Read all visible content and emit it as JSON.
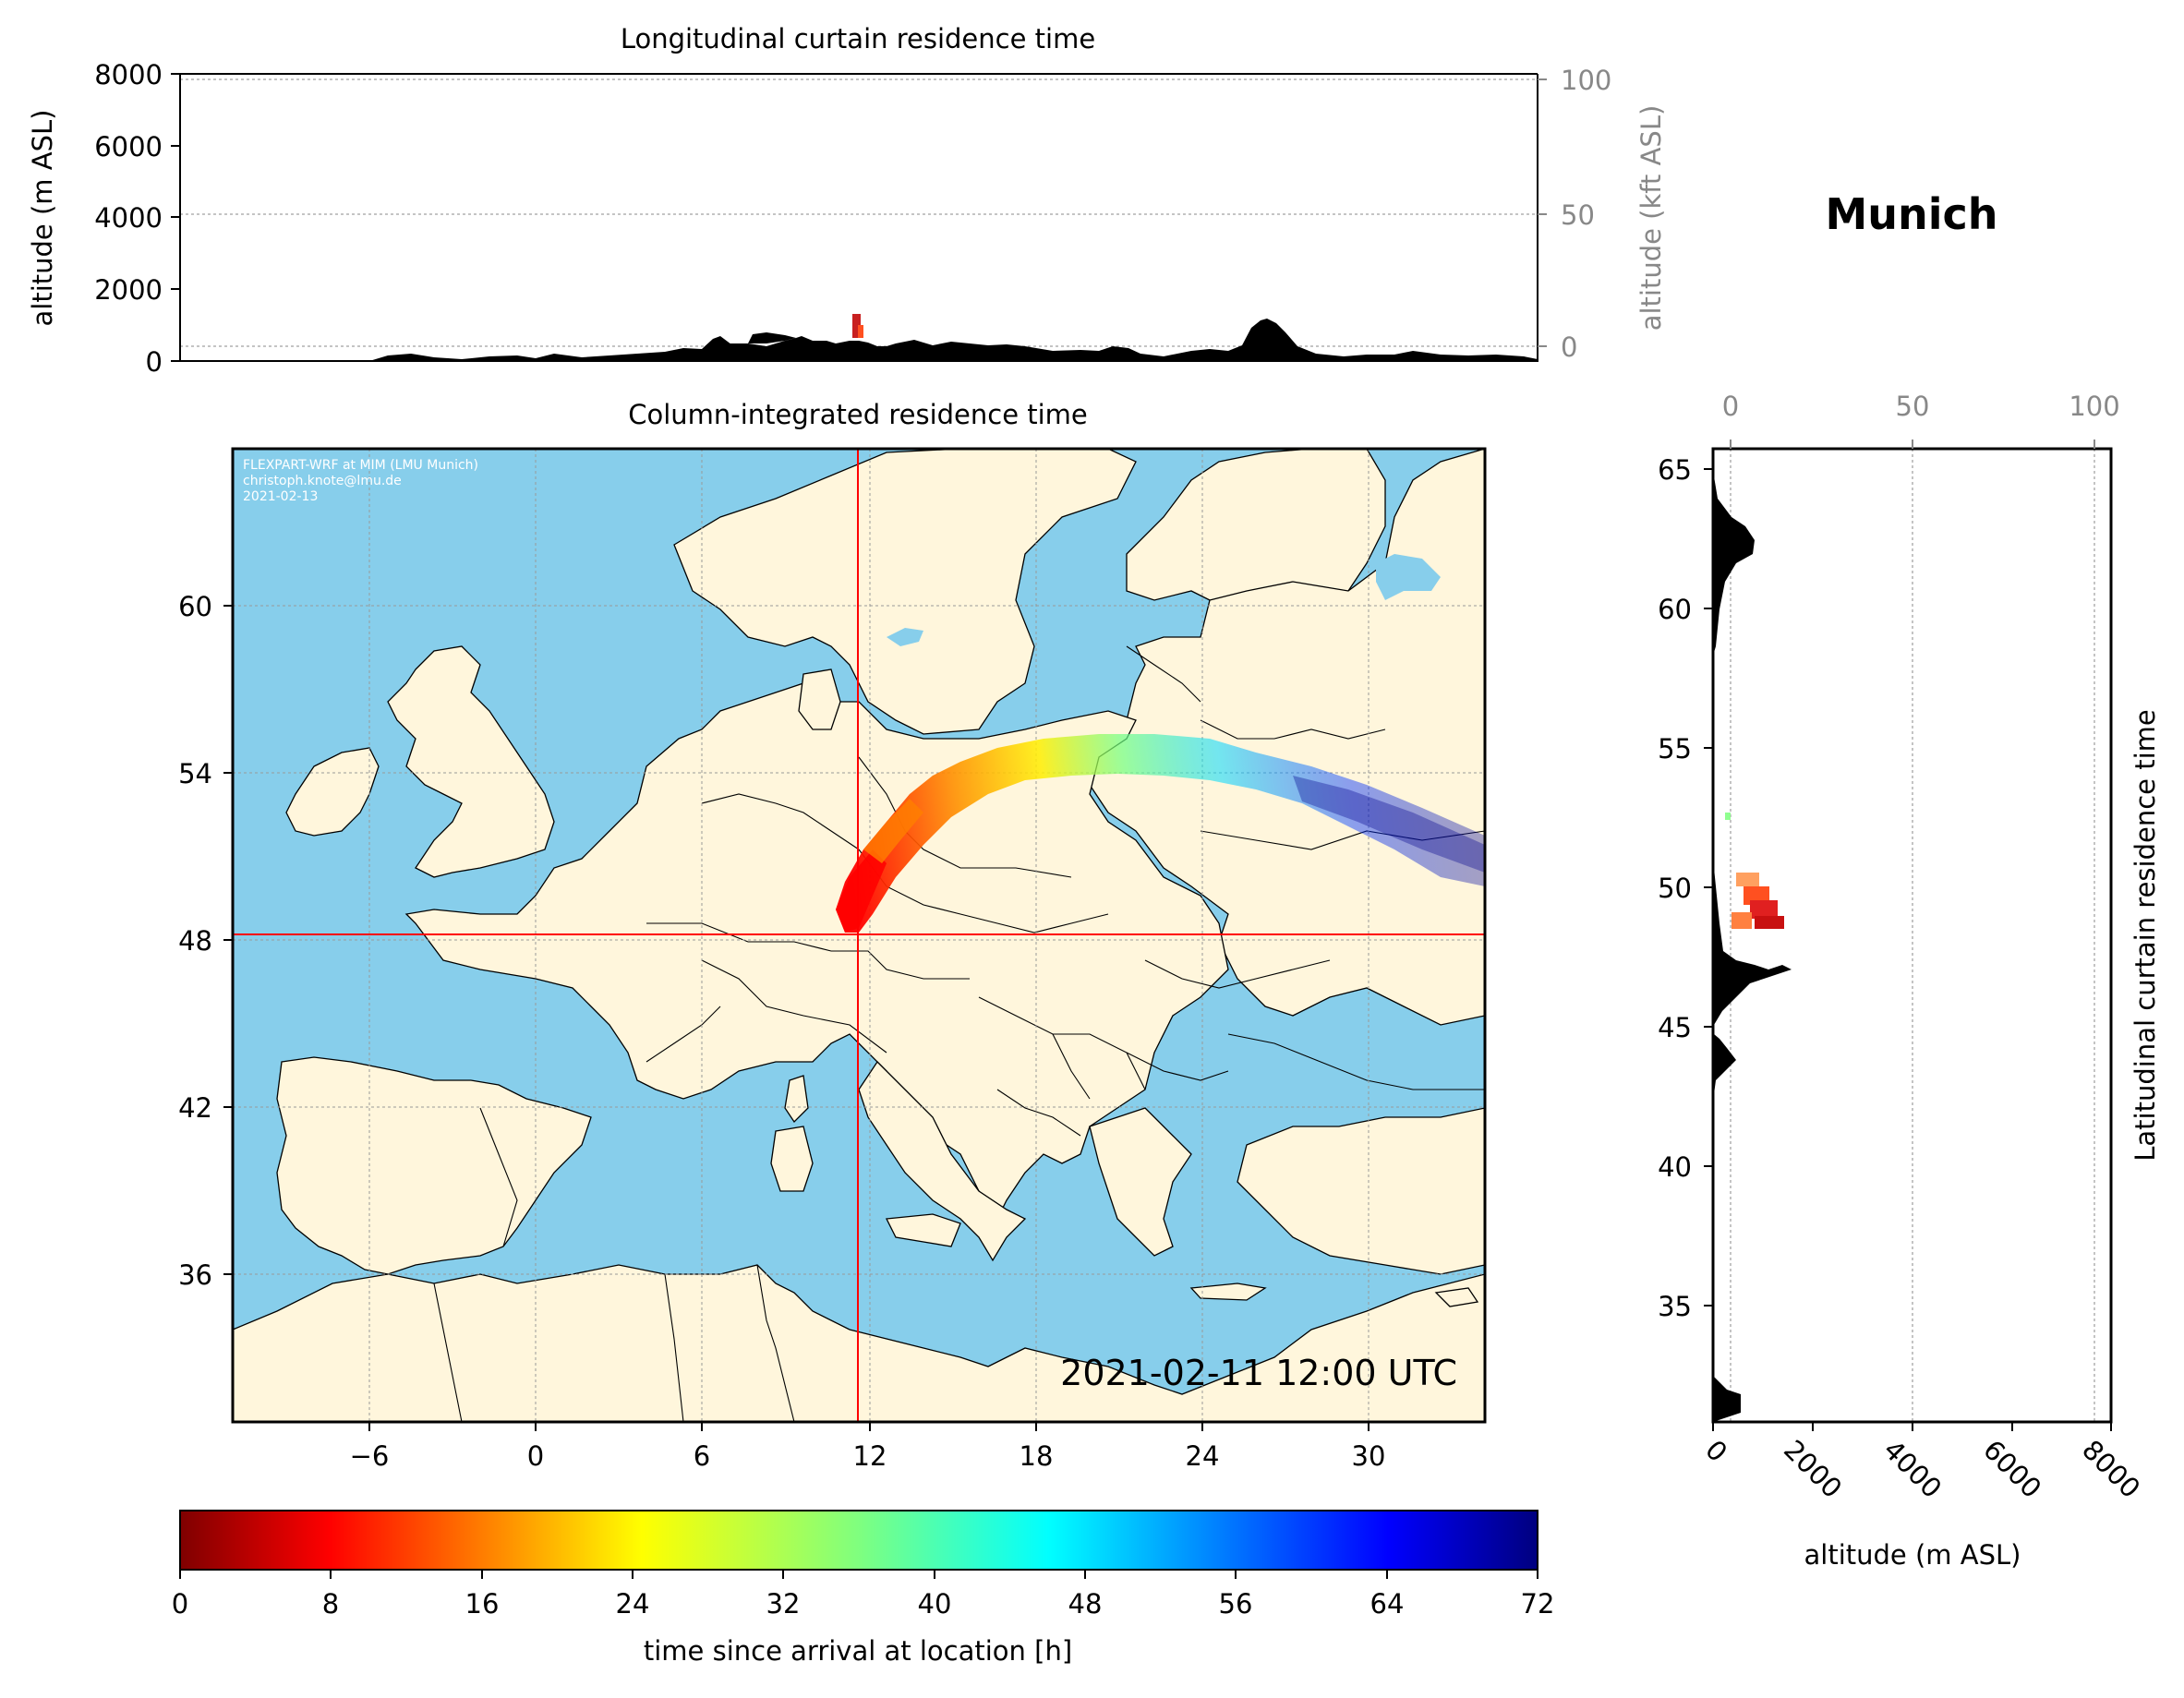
{
  "top_panel": {
    "title": "Longitudinal curtain residence time",
    "ylabel_left": "altitude (m ASL)",
    "ylabel_right": "altitude (kft ASL)",
    "left_ticks": [
      "0",
      "2000",
      "4000",
      "6000",
      "8000"
    ],
    "right_ticks": [
      "0",
      "50",
      "100"
    ]
  },
  "map_panel": {
    "title": "Column-integrated residence time",
    "credit_lines": [
      "FLEXPART-WRF at MIM (LMU Munich)",
      "christoph.knote@lmu.de",
      "2021-02-13"
    ],
    "timestamp": "2021-02-11 12:00 UTC",
    "x_ticks": [
      "−6",
      "0",
      "6",
      "12",
      "18",
      "24",
      "30"
    ],
    "y_ticks": [
      "60",
      "54",
      "48",
      "42",
      "36"
    ],
    "site_lon": 11.6,
    "site_lat": 48.1,
    "colors": {
      "ocean": "#87ceeb",
      "land": "#fff6dc",
      "marker": "#ff0000"
    }
  },
  "location_title": "Munich",
  "side_panel": {
    "ylabel_right": "Latitudinal curtain residence time",
    "xlabel": "altitude (m ASL)",
    "y_ticks": [
      "65",
      "60",
      "55",
      "50",
      "45",
      "40",
      "35"
    ],
    "x_ticks_bottom": [
      "0",
      "2000",
      "4000",
      "6000",
      "8000"
    ],
    "x_ticks_top": [
      "0",
      "50",
      "100"
    ]
  },
  "colorbar": {
    "label": "time since arrival at location [h]",
    "ticks": [
      "0",
      "8",
      "16",
      "24",
      "32",
      "40",
      "48",
      "56",
      "64",
      "72"
    ],
    "colormap": "jet_r",
    "range": [
      0,
      72
    ]
  }
}
